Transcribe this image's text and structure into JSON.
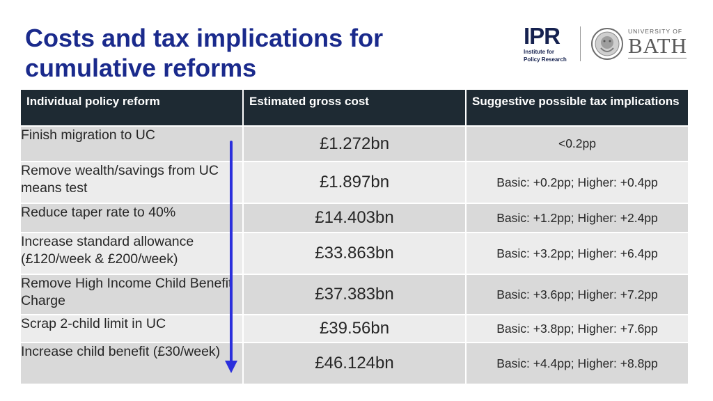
{
  "title": "Costs and tax implications for cumulative reforms",
  "logos": {
    "ipr_mark": "IPR",
    "ipr_line1": "Institute for",
    "ipr_line2": "Policy Research",
    "bath_university": "UNIVERSITY OF",
    "bath_name": "BATH"
  },
  "table": {
    "headers": {
      "policy": "Individual policy reform",
      "cost": "Estimated gross cost",
      "tax": "Suggestive possible tax implications"
    },
    "rows": [
      {
        "policy": "Finish migration to UC",
        "cost": "£1.272bn",
        "tax": "<0.2pp"
      },
      {
        "policy": "Remove wealth/savings from UC means test",
        "cost": "£1.897bn",
        "tax": "Basic: +0.2pp; Higher: +0.4pp"
      },
      {
        "policy": "Reduce taper rate to 40%",
        "cost": "£14.403bn",
        "tax": "Basic: +1.2pp; Higher: +2.4pp"
      },
      {
        "policy": "Increase standard allowance (£120/week & £200/week)",
        "cost": "£33.863bn",
        "tax": "Basic: +3.2pp; Higher: +6.4pp"
      },
      {
        "policy": "Remove High Income Child Benefit Charge",
        "cost": "£37.383bn",
        "tax": "Basic: +3.6pp; Higher: +7.2pp"
      },
      {
        "policy": "Scrap 2-child limit in UC",
        "cost": "£39.56bn",
        "tax": "Basic: +3.8pp; Higher: +7.6pp"
      },
      {
        "policy": "Increase child benefit (£30/week)",
        "cost": "£46.124bn",
        "tax": "Basic: +4.4pp; Higher: +8.8pp"
      }
    ]
  },
  "colors": {
    "title": "#1a2a8c",
    "header_bg": "#1e2a33",
    "row_dark": "#d9d9d9",
    "row_light": "#ececec",
    "arrow": "#2b2fdc"
  },
  "icons": {
    "cumulative_arrow": "arrow-down-icon",
    "bath_seal": "bath-seal-icon"
  }
}
